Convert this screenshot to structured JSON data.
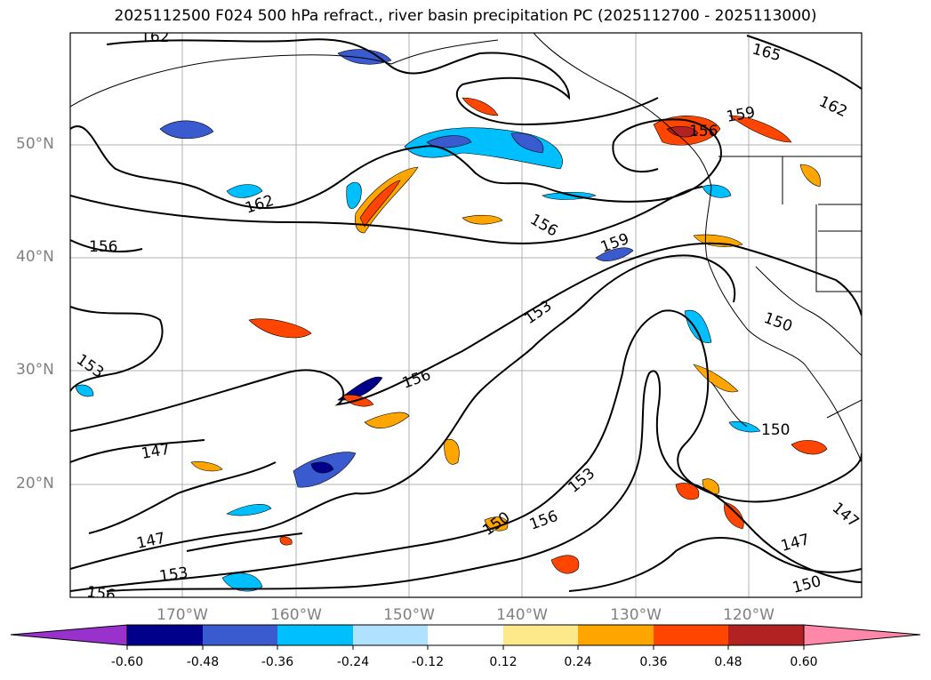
{
  "title": "2025112500 F024 500 hPa refract., river basin precipitation PC (2025112700 - 2025113000)",
  "lat_labels": [
    "50°N",
    "40°N",
    "30°N",
    "20°N"
  ],
  "lon_labels": [
    "170°W",
    "160°W",
    "150°W",
    "140°W",
    "130°W",
    "120°W"
  ],
  "contour_labels": [
    "162",
    "165",
    "162",
    "159",
    "156",
    "162",
    "156",
    "156",
    "159",
    "153",
    "150",
    "153",
    "156",
    "147",
    "150",
    "153",
    "150",
    "156",
    "147",
    "153",
    "156",
    "147",
    "147",
    "150"
  ],
  "colorbar": {
    "ticks": [
      "-0.60",
      "-0.48",
      "-0.36",
      "-0.24",
      "-0.12",
      "0.12",
      "0.24",
      "0.36",
      "0.48",
      "0.60"
    ],
    "colors": [
      "#9932cc",
      "#00008b",
      "#3a5bcf",
      "#00bfff",
      "#b0e2ff",
      "#ffffff",
      "#fde98a",
      "#ffa500",
      "#ff4500",
      "#b22222",
      "#ff88aa"
    ]
  }
}
